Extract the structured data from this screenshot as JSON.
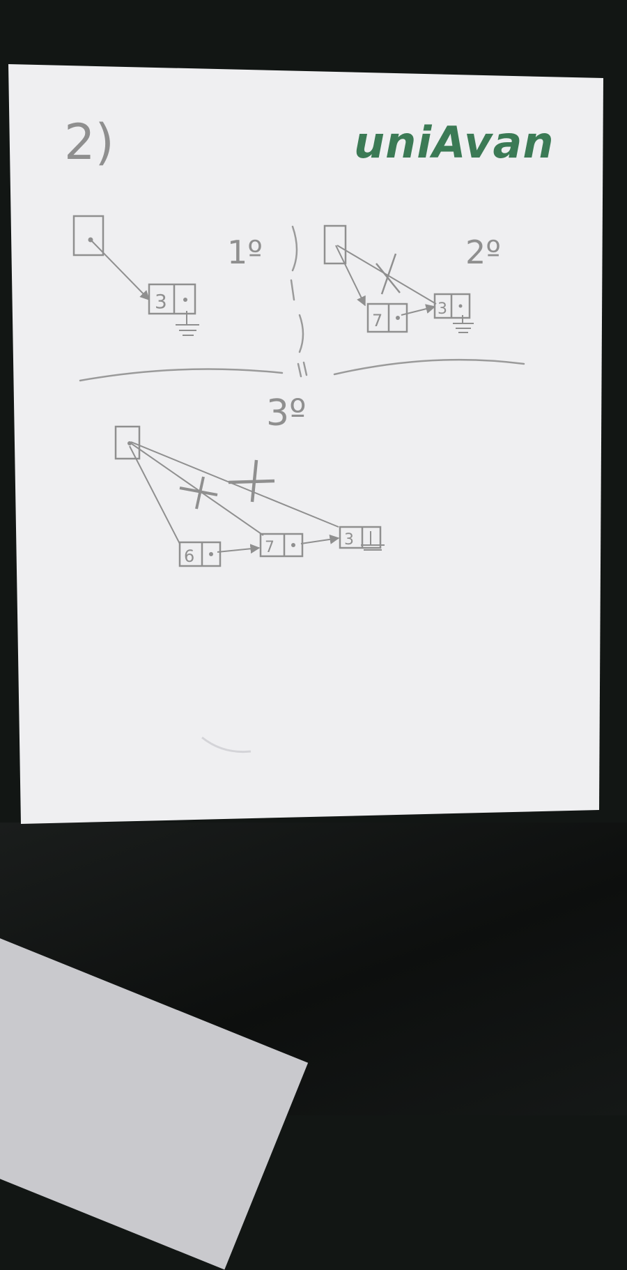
{
  "question_number": "2)",
  "logo": {
    "text": "uniAvan",
    "color": "#3b7a55"
  },
  "steps": [
    {
      "label": "1º"
    },
    {
      "label": "2º"
    },
    {
      "label": "3º"
    }
  ],
  "step1": {
    "nodes": [
      {
        "value": "3"
      }
    ]
  },
  "step2": {
    "nodes": [
      {
        "value": "7"
      },
      {
        "value": "3"
      }
    ]
  },
  "step3": {
    "nodes": [
      {
        "value": "6"
      },
      {
        "value": "7"
      },
      {
        "value": "3"
      }
    ]
  },
  "colors": {
    "pencil": "#8f8f8f",
    "paper": "#efeff1",
    "background": "#121614"
  }
}
